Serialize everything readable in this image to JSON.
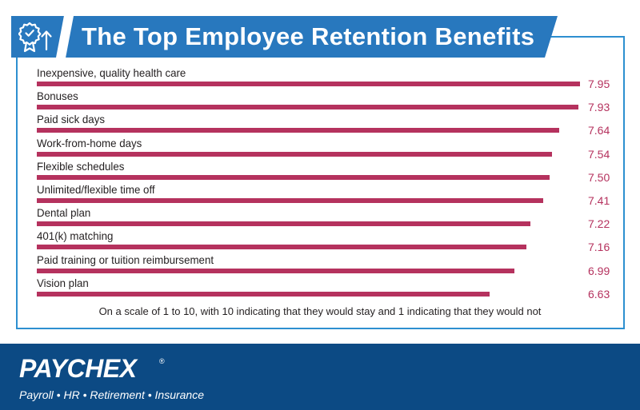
{
  "title": "The Top Employee Retention Benefits",
  "header_icon": "certificate-ribbon-up-arrow-icon",
  "chart_data": {
    "type": "bar",
    "orientation": "horizontal",
    "title": "The Top Employee Retention Benefits",
    "categories": [
      "Inexpensive, quality health care",
      "Bonuses",
      "Paid sick days",
      "Work-from-home days",
      "Flexible schedules",
      "Unlimited/flexible time off",
      "Dental plan",
      "401(k) matching",
      "Paid training or tuition reimbursement",
      "Vision plan"
    ],
    "values": [
      7.95,
      7.93,
      7.64,
      7.54,
      7.5,
      7.41,
      7.22,
      7.16,
      6.99,
      6.63
    ],
    "value_labels": [
      "7.95",
      "7.93",
      "7.64",
      "7.54",
      "7.50",
      "7.41",
      "7.22",
      "7.16",
      "6.99",
      "6.63"
    ],
    "xlim": [
      0,
      7.95
    ],
    "grid": false,
    "bar_color": "#b5325e",
    "footnote": "On a scale of 1 to 10, with 10 indicating that they would stay and 1 indicating that they would not"
  },
  "colors": {
    "accent_blue": "#2878be",
    "frame_blue": "#2d8fd0",
    "footer_navy": "#0c4a84",
    "bar": "#b5325e"
  },
  "footer": {
    "brand": "PAYCHEX",
    "registered_mark": "®",
    "tagline": "Payroll • HR • Retirement • Insurance"
  }
}
